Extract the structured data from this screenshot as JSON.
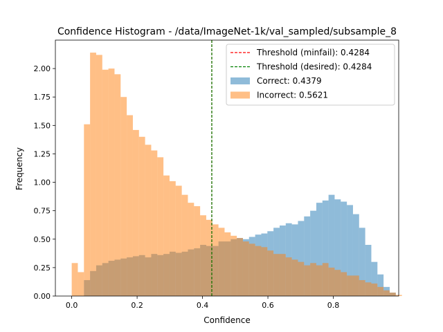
{
  "chart_data": {
    "type": "bar",
    "title": "Confidence Histogram - /data/ImageNet-1k/val_sampled/subsample_8",
    "xlabel": "Confidence",
    "ylabel": "Frequency",
    "xlim": [
      -0.05,
      1.0
    ],
    "ylim": [
      0,
      2.25
    ],
    "xticks": [
      0.0,
      0.2,
      0.4,
      0.6,
      0.8
    ],
    "xtick_labels": [
      "0.0",
      "0.2",
      "0.4",
      "0.6",
      "0.8"
    ],
    "yticks": [
      0.0,
      0.25,
      0.5,
      0.75,
      1.0,
      1.25,
      1.5,
      1.75,
      2.0
    ],
    "ytick_labels": [
      "0.00",
      "0.25",
      "0.50",
      "0.75",
      "1.00",
      "1.25",
      "1.50",
      "1.75",
      "2.00"
    ],
    "bin_width": 0.0187,
    "series": [
      {
        "name": "Correct: 0.4379",
        "color": "#1f77b4",
        "opacity": 0.5,
        "bin_start": 0.0,
        "values": [
          0.0,
          0.0,
          0.14,
          0.22,
          0.27,
          0.29,
          0.31,
          0.32,
          0.33,
          0.34,
          0.35,
          0.36,
          0.34,
          0.37,
          0.36,
          0.37,
          0.39,
          0.38,
          0.39,
          0.41,
          0.42,
          0.45,
          0.44,
          0.44,
          0.48,
          0.48,
          0.5,
          0.51,
          0.5,
          0.52,
          0.54,
          0.55,
          0.57,
          0.6,
          0.62,
          0.64,
          0.63,
          0.66,
          0.7,
          0.75,
          0.82,
          0.84,
          0.89,
          0.85,
          0.83,
          0.8,
          0.72,
          0.6,
          0.45,
          0.3,
          0.19,
          0.08,
          0.03,
          0.0
        ]
      },
      {
        "name": "Incorrect: 0.5621",
        "color": "#ff7f0e",
        "opacity": 0.5,
        "bin_start": 0.0,
        "values": [
          0.29,
          0.21,
          1.51,
          2.14,
          2.12,
          1.99,
          2.0,
          1.95,
          1.75,
          1.59,
          1.46,
          1.4,
          1.33,
          1.28,
          1.22,
          1.06,
          1.01,
          0.97,
          0.89,
          0.82,
          0.79,
          0.71,
          0.67,
          0.63,
          0.6,
          0.56,
          0.53,
          0.51,
          0.48,
          0.46,
          0.44,
          0.43,
          0.4,
          0.37,
          0.37,
          0.34,
          0.32,
          0.3,
          0.27,
          0.29,
          0.27,
          0.29,
          0.25,
          0.23,
          0.21,
          0.18,
          0.18,
          0.14,
          0.12,
          0.11,
          0.08,
          0.05,
          0.03,
          0.01
        ]
      }
    ],
    "vlines": [
      {
        "name": "Threshold (minfail): 0.4284",
        "x": 0.4284,
        "color": "#ff0000"
      },
      {
        "name": "Threshold (desired): 0.4284",
        "x": 0.4284,
        "color": "#008000"
      }
    ],
    "legend": "top-right",
    "grid": false
  }
}
